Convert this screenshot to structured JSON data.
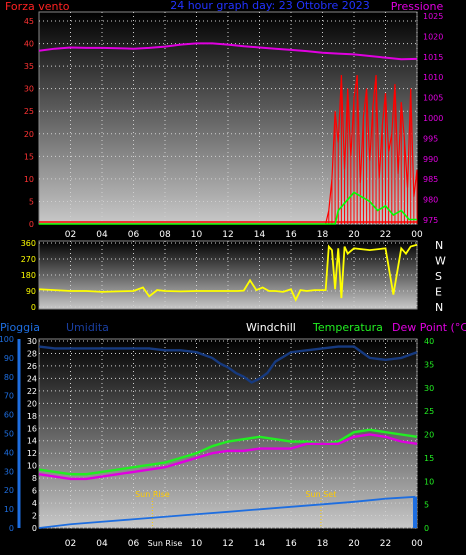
{
  "chart_data": [
    {
      "type": "line",
      "title": "24 hour graph day: 23 Ottobre 2023",
      "left_label": "Forza vento",
      "right_label": "Pressione",
      "x_ticks": [
        "02",
        "04",
        "06",
        "08",
        "10",
        "12",
        "14",
        "16",
        "18",
        "20",
        "22",
        "00"
      ],
      "y_left_ticks": [
        0,
        5,
        10,
        15,
        20,
        25,
        30,
        35,
        40,
        45
      ],
      "y_left_range": [
        0,
        47
      ],
      "y_right_ticks": [
        975,
        980,
        985,
        990,
        995,
        1000,
        1005,
        1010,
        1015,
        1020,
        1025
      ],
      "y_right_range": [
        974,
        1026
      ],
      "x_range": [
        0,
        24
      ],
      "colors": {
        "wind": "#ff0000",
        "avg_wind": "#00ff00",
        "pressure": "#e000e0",
        "left_axis": "#ff3333",
        "right_axis": "#e000e0",
        "title": "#2233ff"
      },
      "series": [
        {
          "key": "pressure",
          "axis": "right",
          "x": [
            0,
            1,
            2,
            3,
            4,
            5,
            6,
            7,
            8,
            9,
            10,
            11,
            12,
            13,
            14,
            15,
            16,
            17,
            18,
            19,
            20,
            21,
            22,
            23,
            24
          ],
          "y": [
            1016.5,
            1017.0,
            1017.3,
            1017.2,
            1017.2,
            1017.1,
            1017.0,
            1017.2,
            1017.5,
            1018.0,
            1018.3,
            1018.3,
            1018.0,
            1017.6,
            1017.3,
            1017.0,
            1016.7,
            1016.4,
            1016.0,
            1015.8,
            1015.6,
            1015.2,
            1014.8,
            1014.4,
            1014.5
          ]
        }
      ],
      "wind_gust_x": [
        0,
        18.2,
        18.4,
        18.6,
        18.8,
        19.0,
        19.2,
        19.4,
        19.6,
        19.8,
        20.0,
        20.2,
        20.4,
        20.6,
        20.8,
        21.0,
        21.2,
        21.4,
        21.6,
        21.8,
        22.0,
        22.2,
        22.4,
        22.6,
        22.8,
        23.0,
        23.2,
        23.4,
        23.6,
        23.8,
        24.0
      ],
      "wind_gust_y": [
        0,
        0,
        3,
        10,
        25,
        18,
        33,
        12,
        30,
        15,
        28,
        33,
        9,
        24,
        30,
        14,
        26,
        33,
        10,
        22,
        29,
        16,
        20,
        31,
        11,
        27,
        19,
        8,
        30,
        6,
        12
      ],
      "wind_avg_x": [
        0,
        18.8,
        19.0,
        19.5,
        20.0,
        20.5,
        21.0,
        21.5,
        22.0,
        22.5,
        23.0,
        23.5,
        24.0
      ],
      "wind_avg_y": [
        0,
        0,
        3,
        5,
        7,
        6,
        5,
        3,
        4,
        2,
        3,
        1,
        1
      ]
    },
    {
      "type": "line",
      "right_letters": [
        "N",
        "W",
        "S",
        "E",
        "N"
      ],
      "y_ticks": [
        0,
        90,
        180,
        270,
        360
      ],
      "y_range": [
        0,
        360
      ],
      "x_range": [
        0,
        24
      ],
      "colors": {
        "direction": "#ffff00",
        "axis": "#ffff00"
      },
      "series": [
        {
          "key": "direction",
          "x": [
            0,
            1,
            2,
            3,
            4,
            5,
            6,
            6.6,
            7,
            7.5,
            8,
            9,
            10,
            11,
            12,
            12.6,
            13,
            13.4,
            13.8,
            14.2,
            14.6,
            15,
            15.5,
            16,
            16.3,
            16.6,
            17,
            17.5,
            18.2,
            18.4,
            18.6,
            18.8,
            19.0,
            19.2,
            19.4,
            19.6,
            20,
            21,
            22,
            22.5,
            23,
            23.3,
            23.6,
            24
          ],
          "y": [
            100,
            95,
            90,
            90,
            85,
            88,
            90,
            110,
            60,
            95,
            90,
            88,
            90,
            90,
            90,
            90,
            92,
            150,
            95,
            110,
            90,
            90,
            85,
            100,
            40,
            95,
            90,
            95,
            95,
            340,
            320,
            100,
            330,
            50,
            340,
            300,
            330,
            320,
            330,
            70,
            330,
            300,
            340,
            350
          ]
        }
      ]
    },
    {
      "type": "line",
      "labels": {
        "rain": "Pioggia",
        "humidity": "Umidita",
        "windchill": "Windchill",
        "temperature": "Temperatura",
        "dewpoint": "Dew Point (°C)"
      },
      "y_left_ticks": [
        0,
        10,
        20,
        30,
        40,
        50,
        60,
        70,
        80,
        90,
        100
      ],
      "y_left_range": [
        0,
        100
      ],
      "y_inner_ticks": [
        0,
        2,
        4,
        6,
        8,
        10,
        12,
        14,
        16,
        18,
        20,
        22,
        24,
        26,
        28,
        30
      ],
      "y_inner_range": [
        0,
        30
      ],
      "y_right_ticks": [
        0,
        5,
        10,
        15,
        20,
        25,
        30,
        35,
        40
      ],
      "y_right_range": [
        0,
        40
      ],
      "x_ticks": [
        "02",
        "04",
        "06",
        "Sun Rise",
        "10",
        "12",
        "14",
        "16",
        "18",
        "20",
        "22",
        "00"
      ],
      "x_range": [
        0,
        24
      ],
      "annotations": [
        {
          "text": "Sun Rise",
          "x": 7.2
        },
        {
          "text": "Sun Set",
          "x": 17.9
        }
      ],
      "colors": {
        "rain": "#1e6ee0",
        "humidity": "#163a80",
        "windchill": "#ffffff",
        "temperature": "#22ee22",
        "dewpoint": "#e000e0",
        "sun": "#ffcc00"
      },
      "series": [
        {
          "key": "humidity",
          "axis": "left",
          "x": [
            0,
            1,
            2,
            3,
            4,
            5,
            6,
            7,
            8,
            9,
            10,
            11,
            11.5,
            12,
            12.5,
            13,
            13.5,
            14,
            14.5,
            15,
            16,
            17,
            18,
            19,
            20,
            20.5,
            21,
            22,
            23,
            24
          ],
          "y": [
            96,
            95,
            95,
            95,
            95,
            95,
            95,
            95,
            94,
            94,
            93,
            90,
            87,
            85,
            82,
            80,
            77,
            79,
            82,
            88,
            93,
            94,
            95,
            96,
            96,
            93,
            90,
            89,
            90,
            93
          ]
        },
        {
          "key": "temperature",
          "axis": "right",
          "x": [
            0,
            1,
            2,
            3,
            4,
            5,
            6,
            7,
            8,
            9,
            10,
            11,
            12,
            13,
            14,
            15,
            16,
            17,
            18,
            19,
            20,
            21,
            22,
            23,
            24
          ],
          "y": [
            12.5,
            12.0,
            11.5,
            11.5,
            12.0,
            12.5,
            13.0,
            13.5,
            14.0,
            15.0,
            16.0,
            17.5,
            18.5,
            19.0,
            19.5,
            19.0,
            18.5,
            18.5,
            18.0,
            18.5,
            20.5,
            21.0,
            20.5,
            20.0,
            19.5
          ]
        },
        {
          "key": "dewpoint",
          "axis": "right",
          "x": [
            0,
            1,
            2,
            3,
            4,
            5,
            6,
            7,
            8,
            9,
            10,
            11,
            12,
            13,
            14,
            15,
            16,
            17,
            18,
            19,
            20,
            21,
            22,
            23,
            24
          ],
          "y": [
            11.5,
            11.0,
            10.5,
            10.5,
            11.0,
            11.5,
            12.0,
            12.5,
            13.0,
            14.0,
            15.0,
            16.0,
            16.5,
            16.5,
            17.0,
            17.0,
            17.0,
            18.0,
            18.0,
            18.0,
            19.5,
            20.0,
            19.5,
            18.5,
            18.0
          ]
        },
        {
          "key": "rain",
          "axis": "inner",
          "x": [
            0,
            2,
            4,
            6,
            8,
            10,
            12,
            14,
            16,
            18,
            20,
            22,
            23.9
          ],
          "y": [
            0,
            0.6,
            1.0,
            1.4,
            1.8,
            2.2,
            2.6,
            3.0,
            3.4,
            3.8,
            4.2,
            4.7,
            5.0
          ]
        }
      ],
      "rain_final_bar": {
        "x": 24,
        "y": 5.0
      }
    }
  ]
}
